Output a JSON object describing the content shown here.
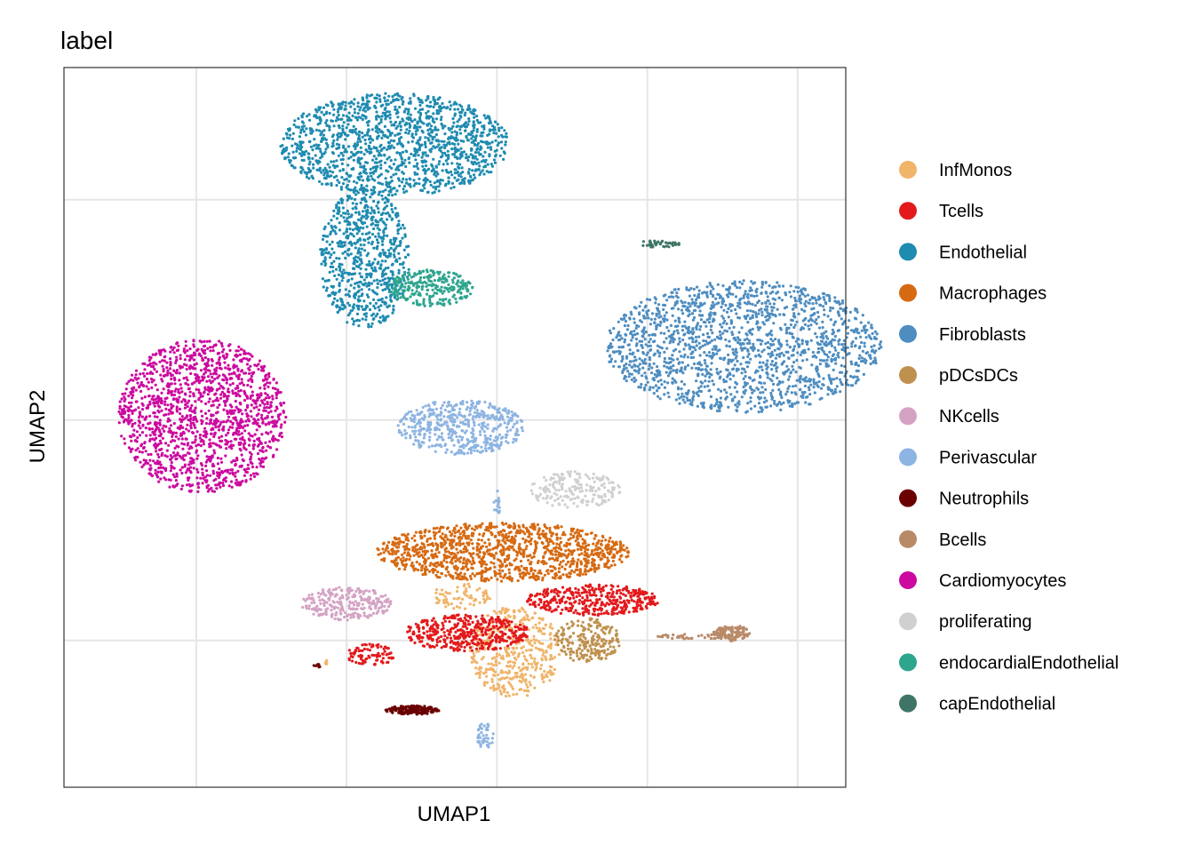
{
  "chart_data": {
    "type": "scatter",
    "title": "label",
    "xlabel": "UMAP1",
    "ylabel": "UMAP2",
    "xlim": [
      -2.2,
      10.8
    ],
    "ylim": [
      -9.0,
      10.6
    ],
    "grid": true,
    "tick_labels_shown": false,
    "legend_position": "right",
    "point_count_note": "dense UMAP embedding; clusters approximated",
    "x_gridlines": [
      0,
      2.5,
      5,
      7.5,
      10
    ],
    "y_gridlines": [
      -5,
      1,
      7
    ],
    "series": [
      {
        "name": "InfMonos",
        "color": "#F0B46A",
        "clusters": [
          {
            "cx": 5.3,
            "cy": -5.3,
            "rx": 0.75,
            "ry": 1.25,
            "n": 420
          },
          {
            "cx": 4.4,
            "cy": -3.8,
            "rx": 0.5,
            "ry": 0.35,
            "n": 70
          },
          {
            "cx": 2.2,
            "cy": -5.6,
            "rx": 0.08,
            "ry": 0.06,
            "n": 6
          }
        ]
      },
      {
        "name": "Tcells",
        "color": "#E31A1C",
        "clusters": [
          {
            "cx": 4.5,
            "cy": -4.8,
            "rx": 1.05,
            "ry": 0.5,
            "n": 420
          },
          {
            "cx": 6.6,
            "cy": -3.9,
            "rx": 1.1,
            "ry": 0.42,
            "n": 380
          },
          {
            "cx": 2.9,
            "cy": -5.4,
            "rx": 0.4,
            "ry": 0.3,
            "n": 90
          }
        ]
      },
      {
        "name": "Endothelial",
        "color": "#1F8BB0",
        "clusters": [
          {
            "cx": 3.3,
            "cy": 8.5,
            "rx": 1.9,
            "ry": 1.4,
            "n": 1400
          },
          {
            "cx": 2.8,
            "cy": 5.4,
            "rx": 0.75,
            "ry": 1.9,
            "n": 700
          }
        ]
      },
      {
        "name": "Macrophages",
        "color": "#D66A12",
        "clusters": [
          {
            "cx": 5.1,
            "cy": -2.6,
            "rx": 2.1,
            "ry": 0.8,
            "n": 1200
          }
        ]
      },
      {
        "name": "Fibroblasts",
        "color": "#4E8DC0",
        "clusters": [
          {
            "cx": 9.1,
            "cy": 3.0,
            "rx": 2.3,
            "ry": 1.8,
            "n": 1700
          }
        ]
      },
      {
        "name": "pDCsDCs",
        "color": "#BF914E",
        "clusters": [
          {
            "cx": 6.5,
            "cy": -5.0,
            "rx": 0.55,
            "ry": 0.6,
            "n": 220
          }
        ]
      },
      {
        "name": "NKcells",
        "color": "#D4A3C4",
        "clusters": [
          {
            "cx": 2.5,
            "cy": -4.0,
            "rx": 0.75,
            "ry": 0.45,
            "n": 260
          }
        ]
      },
      {
        "name": "Perivascular",
        "color": "#8DB4E2",
        "clusters": [
          {
            "cx": 4.4,
            "cy": 0.8,
            "rx": 1.05,
            "ry": 0.75,
            "n": 500
          },
          {
            "cx": 4.8,
            "cy": -7.6,
            "rx": 0.15,
            "ry": 0.35,
            "n": 40
          },
          {
            "cx": 5.0,
            "cy": -1.3,
            "rx": 0.05,
            "ry": 0.4,
            "n": 15
          }
        ]
      },
      {
        "name": "Neutrophils",
        "color": "#6B0000",
        "clusters": [
          {
            "cx": 3.6,
            "cy": -6.9,
            "rx": 0.45,
            "ry": 0.12,
            "n": 160
          },
          {
            "cx": 2.0,
            "cy": -5.7,
            "rx": 0.06,
            "ry": 0.06,
            "n": 8
          }
        ]
      },
      {
        "name": "Bcells",
        "color": "#B98A68",
        "clusters": [
          {
            "cx": 8.9,
            "cy": -4.8,
            "rx": 0.3,
            "ry": 0.22,
            "n": 120
          },
          {
            "cx": 8.2,
            "cy": -4.9,
            "rx": 0.6,
            "ry": 0.07,
            "n": 40
          }
        ]
      },
      {
        "name": "Cardiomyocytes",
        "color": "#CC0A9F",
        "clusters": [
          {
            "cx": 0.1,
            "cy": 1.1,
            "rx": 1.4,
            "ry": 2.1,
            "n": 1500
          }
        ]
      },
      {
        "name": "proliferating",
        "color": "#D0D0D0",
        "clusters": [
          {
            "cx": 6.3,
            "cy": -0.9,
            "rx": 0.75,
            "ry": 0.5,
            "n": 200
          }
        ]
      },
      {
        "name": "endocardialEndothelial",
        "color": "#2EA58E",
        "clusters": [
          {
            "cx": 3.9,
            "cy": 4.6,
            "rx": 0.7,
            "ry": 0.5,
            "n": 260
          }
        ]
      },
      {
        "name": "capEndothelial",
        "color": "#3E7566",
        "clusters": [
          {
            "cx": 7.7,
            "cy": 5.8,
            "rx": 0.35,
            "ry": 0.1,
            "n": 40
          }
        ]
      }
    ]
  }
}
